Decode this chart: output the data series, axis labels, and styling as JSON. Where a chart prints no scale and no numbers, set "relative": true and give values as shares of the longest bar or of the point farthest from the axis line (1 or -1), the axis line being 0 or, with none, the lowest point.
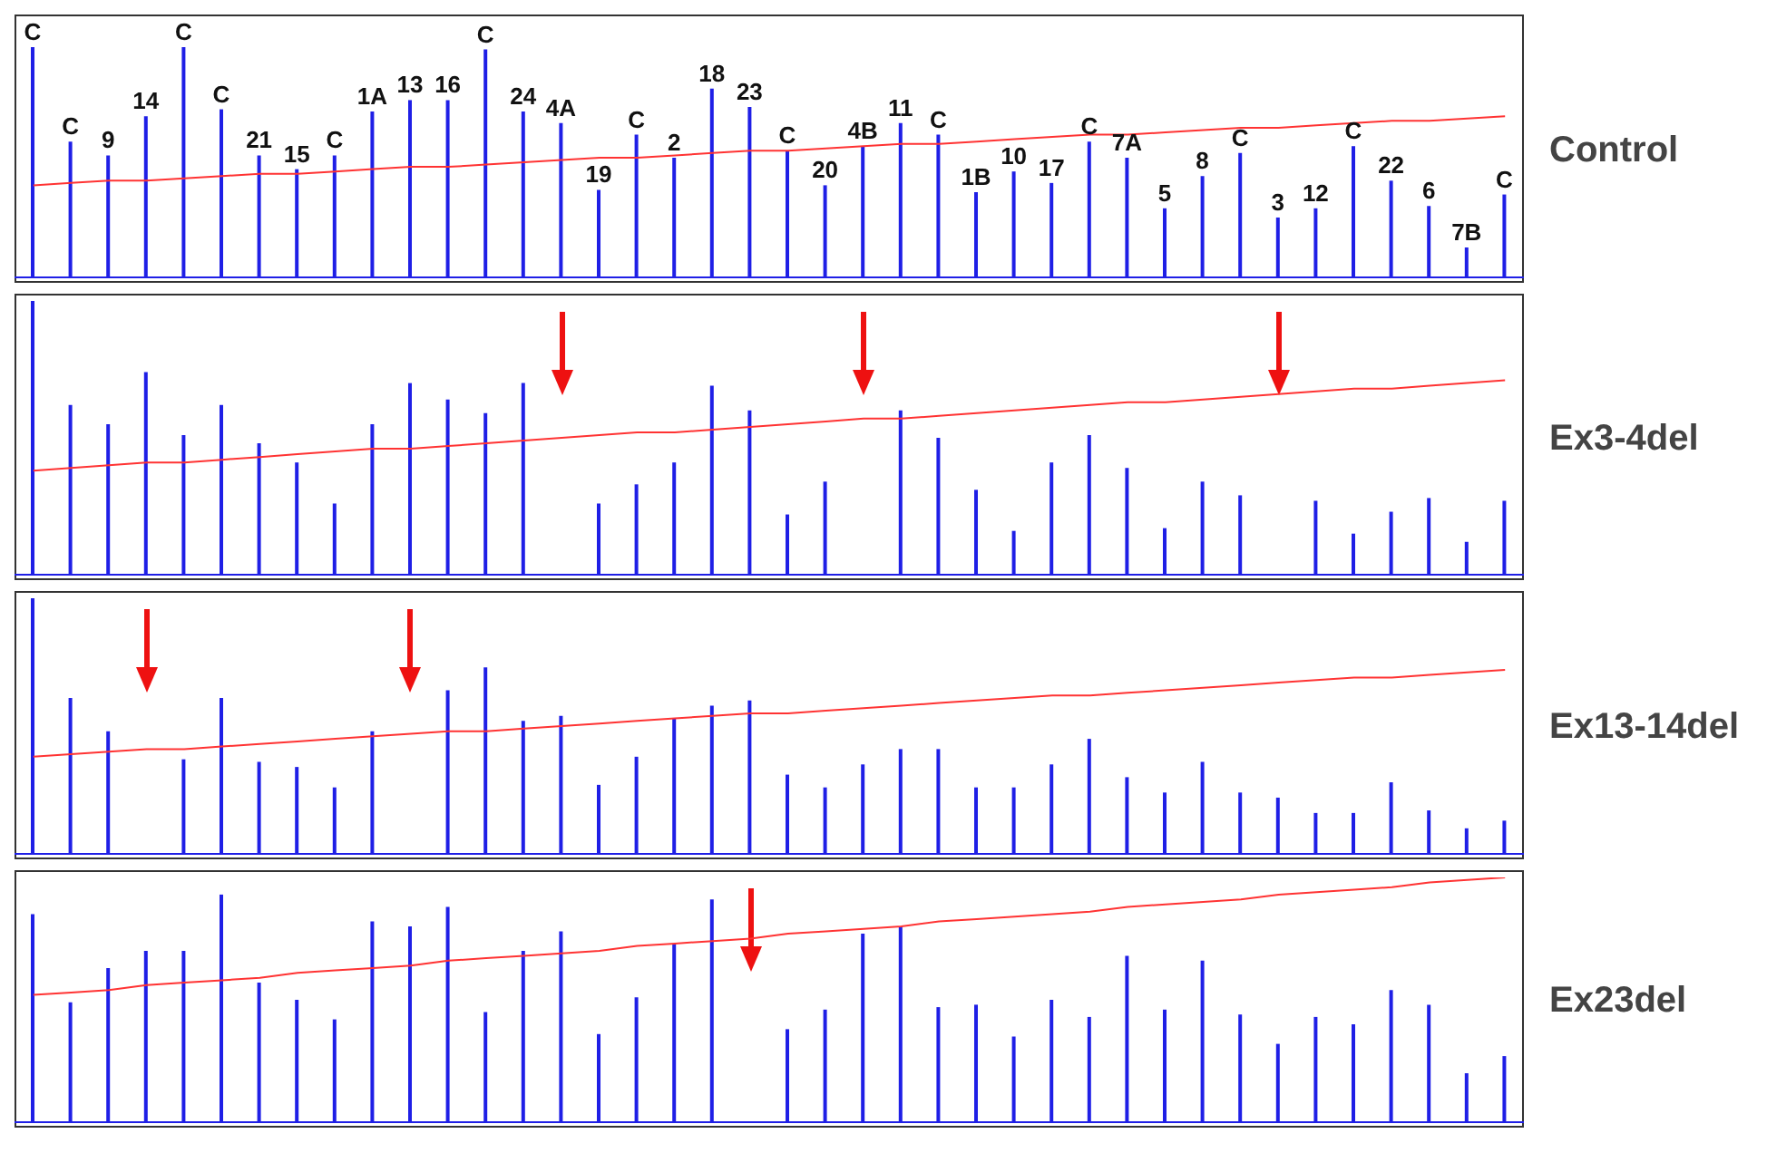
{
  "chart_data": [
    {
      "type": "bar",
      "y2label": "Control",
      "relative": true,
      "categories": [
        "C",
        "C",
        "9",
        "14",
        "C",
        "C",
        "21",
        "15",
        "C",
        "1A",
        "13",
        "16",
        "C",
        "24",
        "4A",
        "19",
        "C",
        "2",
        "18",
        "23",
        "C",
        "20",
        "4B",
        "11",
        "C",
        "1B",
        "10",
        "17",
        "C",
        "7A",
        "5",
        "8",
        "C",
        "3",
        "12",
        "C",
        "22",
        "6",
        "7B",
        "C"
      ],
      "series": [
        {
          "color": "#1f1fe6",
          "values": [
            1.0,
            0.59,
            0.53,
            0.7,
            1.0,
            0.73,
            0.53,
            0.47,
            0.53,
            0.72,
            0.77,
            0.77,
            0.99,
            0.72,
            0.67,
            0.38,
            0.62,
            0.52,
            0.82,
            0.74,
            0.55,
            0.4,
            0.57,
            0.67,
            0.62,
            0.37,
            0.46,
            0.41,
            0.59,
            0.52,
            0.3,
            0.44,
            0.54,
            0.26,
            0.3,
            0.57,
            0.42,
            0.31,
            0.13,
            0.36
          ]
        },
        {
          "type": "line",
          "color": "#ff3333",
          "values": [
            0.4,
            0.41,
            0.42,
            0.42,
            0.43,
            0.44,
            0.45,
            0.45,
            0.46,
            0.47,
            0.48,
            0.48,
            0.49,
            0.5,
            0.51,
            0.52,
            0.52,
            0.53,
            0.54,
            0.55,
            0.55,
            0.56,
            0.57,
            0.58,
            0.58,
            0.59,
            0.6,
            0.61,
            0.62,
            0.62,
            0.63,
            0.64,
            0.65,
            0.65,
            0.66,
            0.67,
            0.68,
            0.68,
            0.69,
            0.7
          ]
        }
      ]
    },
    {
      "type": "bar",
      "y2label": "Ex3-4del",
      "relative": true,
      "categories": [
        null,
        null,
        null,
        null,
        null,
        null,
        null,
        null,
        null,
        null,
        null,
        null,
        null,
        null,
        null,
        null,
        null,
        null,
        null,
        null,
        null,
        null,
        null,
        null,
        null,
        null,
        null,
        null,
        null,
        null,
        null,
        null,
        null,
        null,
        null,
        null,
        null,
        null,
        null,
        null
      ],
      "series": [
        {
          "color": "#1f1fe6",
          "values": [
            1.0,
            0.62,
            0.55,
            0.74,
            0.51,
            0.62,
            0.48,
            0.41,
            0.26,
            0.55,
            0.7,
            0.64,
            0.59,
            0.7,
            null,
            0.26,
            0.33,
            0.41,
            0.69,
            0.6,
            0.22,
            0.34,
            null,
            0.6,
            0.5,
            0.31,
            0.16,
            0.41,
            0.51,
            0.39,
            0.17,
            0.34,
            0.29,
            null,
            0.27,
            0.15,
            0.23,
            0.28,
            0.12,
            0.27
          ]
        },
        {
          "type": "line",
          "color": "#ff3333",
          "values": [
            0.38,
            0.39,
            0.4,
            0.41,
            0.41,
            0.42,
            0.43,
            0.44,
            0.45,
            0.46,
            0.46,
            0.47,
            0.48,
            0.49,
            0.5,
            0.51,
            0.52,
            0.52,
            0.53,
            0.54,
            0.55,
            0.56,
            0.57,
            0.57,
            0.58,
            0.59,
            0.6,
            0.61,
            0.62,
            0.63,
            0.63,
            0.64,
            0.65,
            0.66,
            0.67,
            0.68,
            0.68,
            0.69,
            0.7,
            0.71
          ]
        }
      ]
    },
    {
      "type": "bar",
      "y2label": "Ex13-14del",
      "relative": true,
      "categories": [
        null,
        null,
        null,
        null,
        null,
        null,
        null,
        null,
        null,
        null,
        null,
        null,
        null,
        null,
        null,
        null,
        null,
        null,
        null,
        null,
        null,
        null,
        null,
        null,
        null,
        null,
        null,
        null,
        null,
        null,
        null,
        null,
        null,
        null,
        null,
        null,
        null,
        null,
        null,
        null
      ],
      "series": [
        {
          "color": "#1f1fe6",
          "values": [
            1.0,
            0.61,
            0.48,
            null,
            0.37,
            0.61,
            0.36,
            0.34,
            0.26,
            0.48,
            null,
            0.64,
            0.73,
            0.52,
            0.54,
            0.27,
            0.38,
            0.53,
            0.58,
            0.6,
            0.31,
            0.26,
            0.35,
            0.41,
            0.41,
            0.26,
            0.26,
            0.35,
            0.45,
            0.3,
            0.24,
            0.36,
            0.24,
            0.22,
            0.16,
            0.16,
            0.28,
            0.17,
            0.1,
            0.13
          ]
        },
        {
          "type": "line",
          "color": "#ff3333",
          "values": [
            0.38,
            0.39,
            0.4,
            0.41,
            0.41,
            0.42,
            0.43,
            0.44,
            0.45,
            0.46,
            0.47,
            0.48,
            0.48,
            0.49,
            0.5,
            0.51,
            0.52,
            0.53,
            0.54,
            0.55,
            0.55,
            0.56,
            0.57,
            0.58,
            0.59,
            0.6,
            0.61,
            0.62,
            0.62,
            0.63,
            0.64,
            0.65,
            0.66,
            0.67,
            0.68,
            0.69,
            0.69,
            0.7,
            0.71,
            0.72
          ]
        }
      ]
    },
    {
      "type": "bar",
      "y2label": "Ex23del",
      "relative": true,
      "categories": [
        null,
        null,
        null,
        null,
        null,
        null,
        null,
        null,
        null,
        null,
        null,
        null,
        null,
        null,
        null,
        null,
        null,
        null,
        null,
        null,
        null,
        null,
        null,
        null,
        null,
        null,
        null,
        null,
        null,
        null,
        null,
        null,
        null,
        null,
        null,
        null,
        null,
        null,
        null,
        null
      ],
      "series": [
        {
          "color": "#1f1fe6",
          "values": [
            0.85,
            0.49,
            0.63,
            0.7,
            0.7,
            0.93,
            0.57,
            0.5,
            0.42,
            0.82,
            0.8,
            0.88,
            0.45,
            0.7,
            0.78,
            0.36,
            0.51,
            0.73,
            0.91,
            null,
            0.38,
            0.46,
            0.77,
            0.8,
            0.47,
            0.48,
            0.35,
            0.5,
            0.43,
            0.68,
            0.46,
            0.66,
            0.44,
            0.32,
            0.43,
            0.4,
            0.54,
            0.48,
            0.2,
            0.27
          ]
        },
        {
          "type": "line",
          "color": "#ff3333",
          "values": [
            0.52,
            0.53,
            0.54,
            0.56,
            0.57,
            0.58,
            0.59,
            0.61,
            0.62,
            0.63,
            0.64,
            0.66,
            0.67,
            0.68,
            0.69,
            0.7,
            0.72,
            0.73,
            0.74,
            0.75,
            0.77,
            0.78,
            0.79,
            0.8,
            0.82,
            0.83,
            0.84,
            0.85,
            0.86,
            0.88,
            0.89,
            0.9,
            0.91,
            0.93,
            0.94,
            0.95,
            0.96,
            0.98,
            0.99,
            1.0
          ]
        }
      ]
    }
  ]
}
